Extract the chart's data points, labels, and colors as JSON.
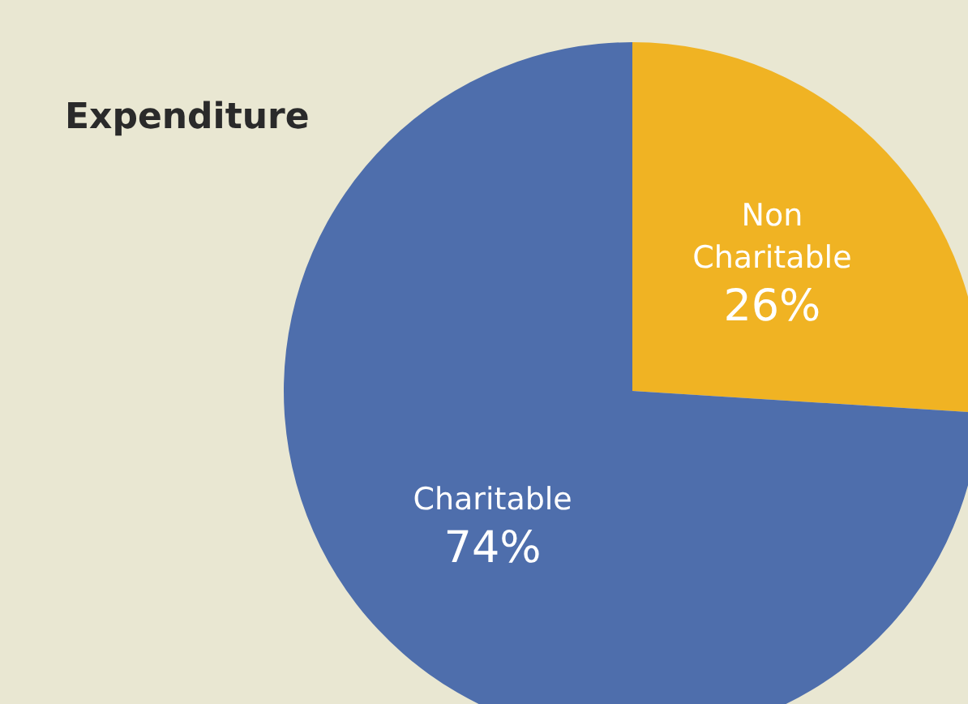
{
  "chart_data": {
    "type": "pie",
    "title": "Expenditure",
    "categories": [
      "Non Charitable",
      "Charitable"
    ],
    "values": [
      26,
      74
    ],
    "colors": [
      "#f0b323",
      "#4e6eac"
    ],
    "value_labels": [
      "26%",
      "74%"
    ]
  }
}
